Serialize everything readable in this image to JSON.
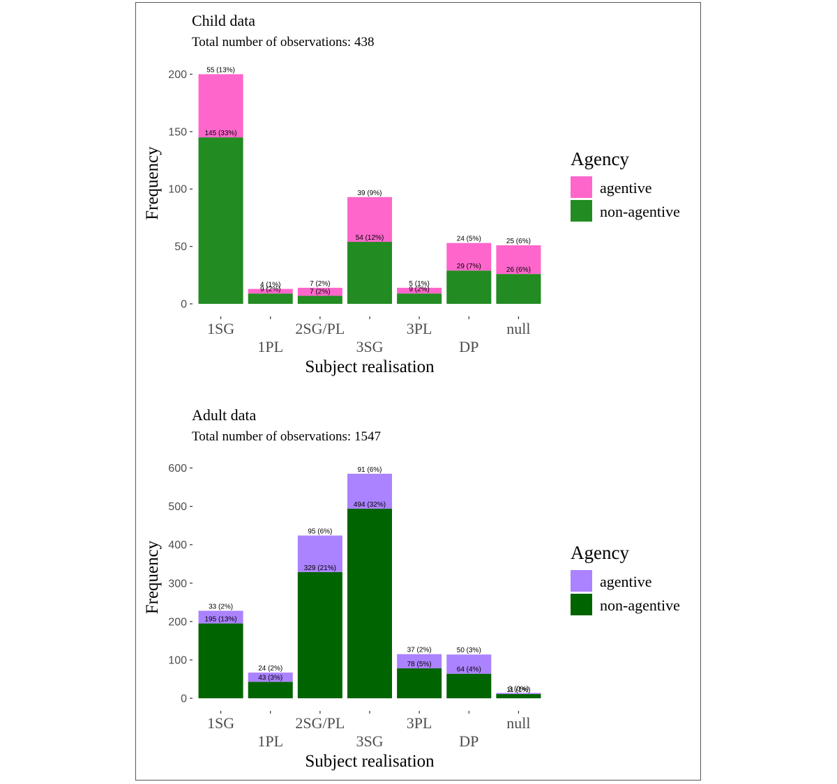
{
  "chart_data": [
    {
      "type": "bar",
      "stacked": true,
      "title": "Child data",
      "subtitle": "Total number of observations:  438",
      "xlabel": "Subject realisation",
      "ylabel": "Frequency",
      "ylim": [
        0,
        210
      ],
      "yticks": [
        0,
        50,
        100,
        150,
        200
      ],
      "categories": [
        "1SG",
        "1PL",
        "2SG/PL",
        "3SG",
        "3PL",
        "DP",
        "null"
      ],
      "series": [
        {
          "name": "non-agentive",
          "color": "#228B22",
          "values": [
            145,
            9,
            7,
            54,
            9,
            29,
            26
          ],
          "labels": [
            "145 (33%)",
            "9 (2%)",
            "7 (2%)",
            "54 (12%)",
            "9 (2%)",
            "29 (7%)",
            "26 (6%)"
          ]
        },
        {
          "name": "agentive",
          "color": "#FF66CC",
          "values": [
            55,
            4,
            7,
            39,
            5,
            24,
            25
          ],
          "labels": [
            "55 (13%)",
            "4 (1%)",
            "7 (2%)",
            "39 (9%)",
            "5 (1%)",
            "24 (5%)",
            "25 (6%)"
          ]
        }
      ],
      "legend": {
        "title": "Agency",
        "placement": "right",
        "entries": [
          "agentive",
          "non-agentive"
        ]
      }
    },
    {
      "type": "bar",
      "stacked": true,
      "title": "Adult data",
      "subtitle": "Total number of observations:  1547",
      "xlabel": "Subject realisation",
      "ylabel": "Frequency",
      "ylim": [
        0,
        630
      ],
      "yticks": [
        0,
        100,
        200,
        300,
        400,
        500,
        600
      ],
      "categories": [
        "1SG",
        "1PL",
        "2SG/PL",
        "3SG",
        "3PL",
        "DP",
        "null"
      ],
      "series": [
        {
          "name": "non-agentive",
          "color": "#006400",
          "values": [
            195,
            43,
            329,
            494,
            78,
            64,
            11
          ],
          "labels": [
            "195 (13%)",
            "43 (3%)",
            "329 (21%)",
            "494 (32%)",
            "78 (5%)",
            "64 (4%)",
            "11 (1%)"
          ]
        },
        {
          "name": "agentive",
          "color": "#AB82FF",
          "values": [
            33,
            24,
            95,
            91,
            37,
            50,
            3
          ],
          "labels": [
            "33 (2%)",
            "24 (2%)",
            "95 (6%)",
            "91 (6%)",
            "37 (2%)",
            "50 (3%)",
            "3 (0%)"
          ]
        }
      ],
      "legend": {
        "title": "Agency",
        "placement": "right",
        "entries": [
          "agentive",
          "non-agentive"
        ]
      }
    }
  ]
}
